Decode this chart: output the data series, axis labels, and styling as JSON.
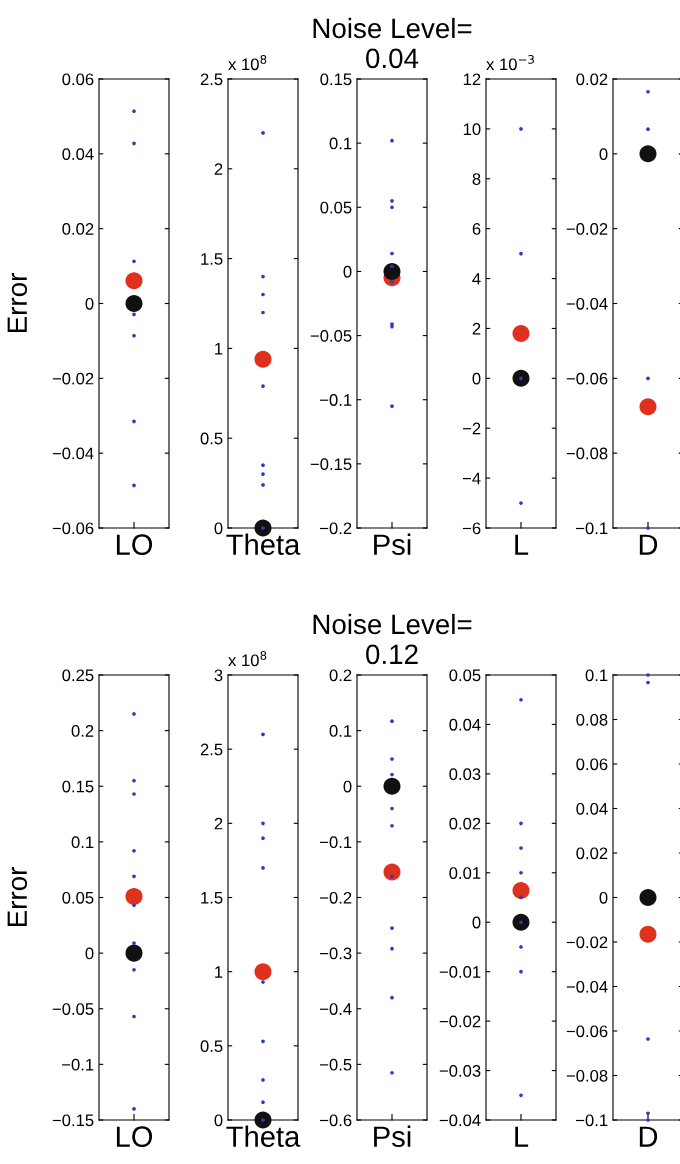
{
  "chart_data": [
    {
      "type": "scatter",
      "ylabel": "Error",
      "categories": [
        "LO"
      ],
      "ylim": [
        -0.06,
        0.06
      ],
      "yticks": [
        {
          "value": -0.06,
          "label": "−0.06"
        },
        {
          "value": -0.04,
          "label": "−0.04"
        },
        {
          "value": -0.02,
          "label": "−0.02"
        },
        0,
        0.02,
        0.04,
        0.06
      ],
      "grid": false,
      "marker": "circle",
      "series": [
        {
          "color": "#e0301e",
          "x": [
            "LO"
          ],
          "values": [
            0.0061
          ]
        },
        {
          "color": "#111111",
          "x": [
            "LO"
          ],
          "values": [
            0
          ]
        },
        {
          "color": "#2b3fb5",
          "x": [
            "LO",
            "LO",
            "LO",
            "LO",
            "LO",
            "LO",
            "LO"
          ],
          "values": [
            0.0514,
            0.0428,
            0.0113,
            -0.0029,
            -0.0086,
            -0.0315,
            -0.0486
          ]
        }
      ]
    },
    {
      "type": "scatter",
      "categories": [
        "Theta"
      ],
      "ylim": [
        0,
        2.5
      ],
      "yticks": [
        0,
        0.5,
        1,
        1.5,
        2,
        2.5
      ],
      "grid": false,
      "marker": "circle",
      "annotations": [
        "x 10$^{8}$"
      ],
      "series": [
        {
          "color": "#e0301e",
          "x": [
            "Theta"
          ],
          "values": [
            0.94
          ]
        },
        {
          "color": "#111111",
          "x": [
            "Theta"
          ],
          "values": [
            0
          ]
        },
        {
          "color": "#2b3fb5",
          "x": [
            "Theta",
            "Theta",
            "Theta",
            "Theta",
            "Theta",
            "Theta",
            "Theta",
            "Theta",
            "Theta"
          ],
          "values": [
            2.2,
            1.4,
            1.3,
            1.2,
            0.79,
            0.35,
            0.3,
            0.24,
            0
          ]
        }
      ]
    },
    {
      "type": "scatter",
      "title": "Noise Level=\n0.04",
      "categories": [
        "Psi"
      ],
      "ylim": [
        -0.2,
        0.15
      ],
      "yticks": [
        {
          "value": -0.2,
          "label": "−0.2"
        },
        {
          "value": -0.15,
          "label": "−0.15"
        },
        {
          "value": -0.1,
          "label": "−0.1"
        },
        {
          "value": -0.05,
          "label": "−0.05"
        },
        0,
        0.05,
        0.1,
        0.15
      ],
      "grid": false,
      "marker": "circle",
      "series": [
        {
          "color": "#e0301e",
          "x": [
            "Psi"
          ],
          "values": [
            -0.005
          ]
        },
        {
          "color": "#111111",
          "x": [
            "Psi"
          ],
          "values": [
            0
          ]
        },
        {
          "color": "#2b3fb5",
          "x": [
            "Psi",
            "Psi",
            "Psi",
            "Psi",
            "Psi",
            "Psi",
            "Psi",
            "Psi",
            "Psi"
          ],
          "values": [
            0.102,
            0.055,
            0.05,
            0.014,
            0.004,
            -0.008,
            -0.041,
            -0.043,
            -0.105
          ]
        }
      ]
    },
    {
      "type": "scatter",
      "categories": [
        "L"
      ],
      "ylim": [
        -6,
        12
      ],
      "yticks": [
        {
          "value": -6,
          "label": "−6"
        },
        {
          "value": -4,
          "label": "−4"
        },
        {
          "value": -2,
          "label": "−2"
        },
        0,
        2,
        4,
        6,
        8,
        10,
        12
      ],
      "grid": false,
      "marker": "circle",
      "annotations": [
        "x 10$^{−3}$"
      ],
      "series": [
        {
          "color": "#e0301e",
          "x": [
            "L"
          ],
          "values": [
            1.8
          ]
        },
        {
          "color": "#111111",
          "x": [
            "L"
          ],
          "values": [
            0
          ]
        },
        {
          "color": "#2b3fb5",
          "x": [
            "L",
            "L",
            "L",
            "L"
          ],
          "values": [
            10,
            5,
            0,
            -5
          ]
        }
      ]
    },
    {
      "type": "scatter",
      "categories": [
        "D"
      ],
      "ylim": [
        -0.1,
        0.02
      ],
      "yticks": [
        {
          "value": -0.1,
          "label": "−0.1"
        },
        {
          "value": -0.08,
          "label": "−0.08"
        },
        {
          "value": -0.06,
          "label": "−0.06"
        },
        {
          "value": -0.04,
          "label": "−0.04"
        },
        {
          "value": -0.02,
          "label": "−0.02"
        },
        0,
        0.02
      ],
      "grid": false,
      "marker": "circle",
      "series": [
        {
          "color": "#e0301e",
          "x": [
            "D"
          ],
          "values": [
            -0.0676
          ]
        },
        {
          "color": "#111111",
          "x": [
            "D"
          ],
          "values": [
            0
          ]
        },
        {
          "color": "#2b3fb5",
          "x": [
            "D",
            "D",
            "D",
            "D"
          ],
          "values": [
            0.0166,
            0.0066,
            -0.06,
            -0.1
          ]
        }
      ]
    },
    {
      "type": "scatter",
      "ylabel": "Error",
      "categories": [
        "LO"
      ],
      "ylim": [
        -0.15,
        0.25
      ],
      "yticks": [
        {
          "value": -0.15,
          "label": "−0.15"
        },
        {
          "value": -0.1,
          "label": "−0.1"
        },
        {
          "value": -0.05,
          "label": "−0.05"
        },
        0,
        0.05,
        0.1,
        0.15,
        0.2,
        0.25
      ],
      "grid": false,
      "marker": "circle",
      "series": [
        {
          "color": "#e0301e",
          "x": [
            "LO"
          ],
          "values": [
            0.051
          ]
        },
        {
          "color": "#111111",
          "x": [
            "LO"
          ],
          "values": [
            0
          ]
        },
        {
          "color": "#2b3fb5",
          "x": [
            "LO",
            "LO",
            "LO",
            "LO",
            "LO",
            "LO",
            "LO",
            "LO",
            "LO",
            "LO"
          ],
          "values": [
            0.215,
            0.155,
            0.143,
            0.092,
            0.069,
            0.043,
            0.009,
            -0.015,
            -0.057,
            -0.14
          ]
        }
      ]
    },
    {
      "type": "scatter",
      "categories": [
        "Theta"
      ],
      "ylim": [
        0,
        3
      ],
      "yticks": [
        0,
        0.5,
        1,
        1.5,
        2,
        2.5,
        3
      ],
      "grid": false,
      "marker": "circle",
      "annotations": [
        "x 10$^{8}$"
      ],
      "series": [
        {
          "color": "#e0301e",
          "x": [
            "Theta"
          ],
          "values": [
            1.0
          ]
        },
        {
          "color": "#111111",
          "x": [
            "Theta"
          ],
          "values": [
            0
          ]
        },
        {
          "color": "#2b3fb5",
          "x": [
            "Theta",
            "Theta",
            "Theta",
            "Theta",
            "Theta",
            "Theta",
            "Theta",
            "Theta",
            "Theta"
          ],
          "values": [
            2.6,
            2.0,
            1.9,
            1.7,
            0.93,
            0.53,
            0.27,
            0.12,
            0
          ]
        }
      ]
    },
    {
      "type": "scatter",
      "title": "Noise Level=\n0.12",
      "categories": [
        "Psi"
      ],
      "ylim": [
        -0.6,
        0.2
      ],
      "yticks": [
        {
          "value": -0.6,
          "label": "−0.6"
        },
        {
          "value": -0.5,
          "label": "−0.5"
        },
        {
          "value": -0.4,
          "label": "−0.4"
        },
        {
          "value": -0.3,
          "label": "−0.3"
        },
        {
          "value": -0.2,
          "label": "−0.2"
        },
        {
          "value": -0.1,
          "label": "−0.1"
        },
        0,
        0.1,
        0.2
      ],
      "grid": false,
      "marker": "circle",
      "series": [
        {
          "color": "#e0301e",
          "x": [
            "Psi"
          ],
          "values": [
            -0.154
          ]
        },
        {
          "color": "#111111",
          "x": [
            "Psi"
          ],
          "values": [
            0
          ]
        },
        {
          "color": "#2b3fb5",
          "x": [
            "Psi",
            "Psi",
            "Psi",
            "Psi",
            "Psi",
            "Psi",
            "Psi",
            "Psi",
            "Psi",
            "Psi"
          ],
          "values": [
            0.117,
            0.049,
            0.021,
            -0.04,
            -0.071,
            -0.162,
            -0.255,
            -0.292,
            -0.38,
            -0.515
          ]
        }
      ]
    },
    {
      "type": "scatter",
      "categories": [
        "L"
      ],
      "ylim": [
        -0.04,
        0.05
      ],
      "yticks": [
        {
          "value": -0.04,
          "label": "−0.04"
        },
        {
          "value": -0.03,
          "label": "−0.03"
        },
        {
          "value": -0.02,
          "label": "−0.02"
        },
        {
          "value": -0.01,
          "label": "−0.01"
        },
        0,
        0.01,
        0.02,
        0.03,
        0.04,
        0.05
      ],
      "grid": false,
      "marker": "circle",
      "series": [
        {
          "color": "#e0301e",
          "x": [
            "L"
          ],
          "values": [
            0.0064
          ]
        },
        {
          "color": "#111111",
          "x": [
            "L"
          ],
          "values": [
            0
          ]
        },
        {
          "color": "#2b3fb5",
          "x": [
            "L",
            "L",
            "L",
            "L",
            "L",
            "L",
            "L",
            "L",
            "L"
          ],
          "values": [
            0.045,
            0.02,
            0.015,
            0.01,
            0.005,
            0,
            -0.005,
            -0.01,
            -0.035
          ]
        }
      ]
    },
    {
      "type": "scatter",
      "categories": [
        "D"
      ],
      "ylim": [
        -0.1,
        0.1
      ],
      "yticks": [
        {
          "value": -0.1,
          "label": "−0.1"
        },
        {
          "value": -0.08,
          "label": "−0.08"
        },
        {
          "value": -0.06,
          "label": "−0.06"
        },
        {
          "value": -0.04,
          "label": "−0.04"
        },
        {
          "value": -0.02,
          "label": "−0.02"
        },
        0,
        0.02,
        0.04,
        0.06,
        0.08,
        0.1
      ],
      "grid": false,
      "marker": "circle",
      "series": [
        {
          "color": "#e0301e",
          "x": [
            "D"
          ],
          "values": [
            -0.0165
          ]
        },
        {
          "color": "#111111",
          "x": [
            "D"
          ],
          "values": [
            0
          ]
        },
        {
          "color": "#2b3fb5",
          "x": [
            "D",
            "D",
            "D",
            "D",
            "D"
          ],
          "values": [
            0.1,
            0.0966,
            -0.0636,
            -0.097,
            -0.1
          ]
        }
      ]
    }
  ]
}
